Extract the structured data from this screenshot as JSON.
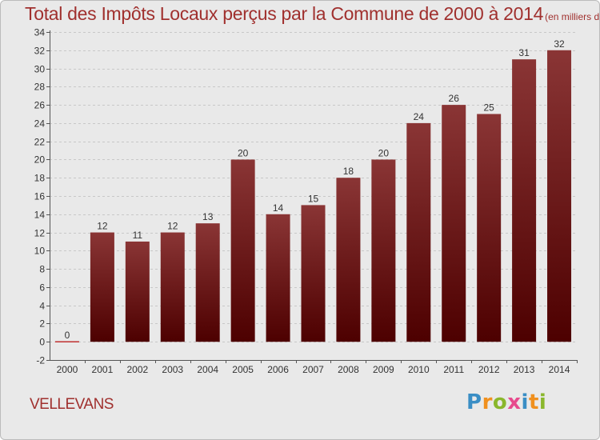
{
  "header": {
    "title": "Total des Impôts Locaux perçus par la Commune de 2000 à 2014",
    "unit": "(en milliers d'€)"
  },
  "footer": {
    "commune": "VELLEVANS",
    "logo": [
      "P",
      "r",
      "o",
      "x",
      "i",
      "t",
      "i"
    ],
    "logo_colors": [
      "#3a8ec5",
      "#f0901e",
      "#8ab72c",
      "#e74a8d",
      "#3a8ec5",
      "#f0901e",
      "#8ab72c"
    ]
  },
  "colors": {
    "bar_top": "#8a3535",
    "bar_bottom": "#4d0000",
    "accent": "#a0302e",
    "zero_line": "#c03030"
  },
  "chart_data": {
    "type": "bar",
    "categories": [
      "2000",
      "2001",
      "2002",
      "2003",
      "2004",
      "2005",
      "2006",
      "2007",
      "2008",
      "2009",
      "2010",
      "2011",
      "2012",
      "2013",
      "2014"
    ],
    "values": [
      0,
      12,
      11,
      12,
      13,
      20,
      14,
      15,
      18,
      20,
      24,
      26,
      25,
      31,
      32
    ],
    "title": "Total des Impôts Locaux perçus par la Commune de 2000 à 2014",
    "subtitle": "(en milliers d'€)",
    "xlabel": "",
    "ylabel": "",
    "ylim": [
      -2,
      34
    ],
    "yticks": [
      -2,
      0,
      2,
      4,
      6,
      8,
      10,
      12,
      14,
      16,
      18,
      20,
      22,
      24,
      26,
      28,
      30,
      32,
      34
    ],
    "grid": true,
    "data_labels": true
  }
}
